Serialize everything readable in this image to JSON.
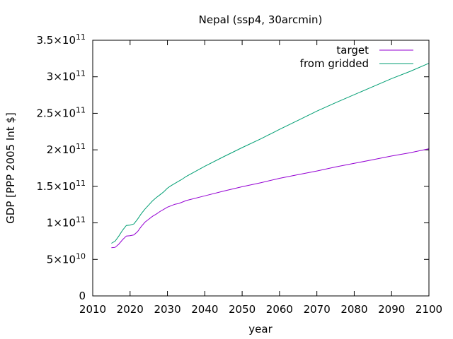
{
  "chart_data": {
    "type": "line",
    "title": "Nepal (ssp4, 30arcmin)",
    "xlabel": "year",
    "ylabel": "GDP [PPP 2005 Int $]",
    "xlim": [
      2010,
      2100
    ],
    "ylim": [
      0,
      350000000000
    ],
    "x_ticks": [
      "2010",
      "2020",
      "2030",
      "2040",
      "2050",
      "2060",
      "2070",
      "2080",
      "2090",
      "2100"
    ],
    "y_ticks": [
      {
        "value": 0,
        "mantissa": "0",
        "exponent": ""
      },
      {
        "value": 50000000000,
        "mantissa": "5×10",
        "exponent": "10"
      },
      {
        "value": 100000000000,
        "mantissa": "1×10",
        "exponent": "11"
      },
      {
        "value": 150000000000,
        "mantissa": "1.5×10",
        "exponent": "11"
      },
      {
        "value": 200000000000,
        "mantissa": "2×10",
        "exponent": "11"
      },
      {
        "value": 250000000000,
        "mantissa": "2.5×10",
        "exponent": "11"
      },
      {
        "value": 300000000000,
        "mantissa": "3×10",
        "exponent": "11"
      },
      {
        "value": 350000000000,
        "mantissa": "3.5×10",
        "exponent": "11"
      }
    ],
    "grid": false,
    "legend_position": "top-right",
    "x": [
      2015,
      2016,
      2017,
      2018,
      2019,
      2020,
      2021,
      2022,
      2023,
      2024,
      2025,
      2026,
      2027,
      2028,
      2029,
      2030,
      2031,
      2032,
      2033,
      2034,
      2035,
      2040,
      2045,
      2050,
      2055,
      2060,
      2065,
      2070,
      2075,
      2080,
      2085,
      2090,
      2095,
      2100
    ],
    "series": [
      {
        "name": "target",
        "color": "#9400d3",
        "values": [
          66000000000,
          66500000000,
          71000000000,
          77000000000,
          82000000000,
          82500000000,
          83500000000,
          88000000000,
          95000000000,
          101000000000,
          105000000000,
          109000000000,
          112000000000,
          115500000000,
          118500000000,
          121500000000,
          123500000000,
          125500000000,
          126500000000,
          128500000000,
          130500000000,
          137000000000,
          143500000000,
          149500000000,
          155000000000,
          161000000000,
          166000000000,
          171000000000,
          176500000000,
          181500000000,
          186500000000,
          191500000000,
          196000000000,
          201500000000
        ]
      },
      {
        "name": "from gridded",
        "color": "#009e73",
        "values": [
          72000000000,
          75000000000,
          82000000000,
          90000000000,
          96500000000,
          97000000000,
          98500000000,
          105000000000,
          112500000000,
          119000000000,
          124500000000,
          130000000000,
          134500000000,
          138500000000,
          142500000000,
          147500000000,
          151000000000,
          154000000000,
          157000000000,
          160000000000,
          163500000000,
          177500000000,
          190500000000,
          203000000000,
          215000000000,
          228000000000,
          240500000000,
          253000000000,
          264500000000,
          275500000000,
          286500000000,
          297500000000,
          307500000000,
          318500000000
        ]
      }
    ]
  }
}
